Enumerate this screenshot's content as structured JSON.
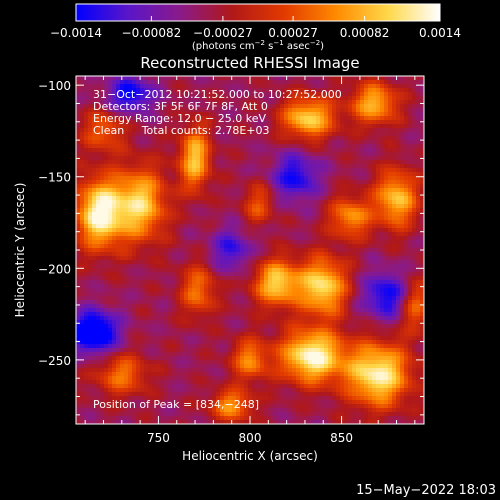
{
  "chart_data": {
    "type": "heatmap",
    "title": "Reconstructed RHESSI Image",
    "xlabel": "Heliocentric X (arcsec)",
    "ylabel": "Heliocentric Y (arcsec)",
    "xlim": [
      705,
      895
    ],
    "ylim": [
      -285,
      -95
    ],
    "x_ticks": [
      750,
      800,
      850
    ],
    "y_ticks": [
      -100,
      -150,
      -200,
      -250
    ],
    "x_tick_labels": [
      "750",
      "800",
      "850"
    ],
    "y_tick_labels": [
      "−100",
      "−150",
      "−200",
      "−250"
    ],
    "colorbar": {
      "range": [
        -0.0014,
        0.0014
      ],
      "ticks": [
        -0.0014,
        -0.00082,
        -0.00027,
        0.00027,
        0.00082,
        0.0014
      ],
      "tick_labels": [
        "−0.0014",
        "−0.00082",
        "−0.00027",
        "0.00027",
        "0.00082",
        "0.0014"
      ],
      "units_prefix": "(photons cm",
      "units_exp1": "−2",
      "units_mid1": " s",
      "units_exp2": "−1",
      "units_mid2": " asec",
      "units_exp3": "−2",
      "units_suffix": ")",
      "colormap": [
        "#0000ff",
        "#5a16c8",
        "#8a1a8a",
        "#b01818",
        "#e23a00",
        "#ff8a00",
        "#ffd84a",
        "#ffffff"
      ]
    },
    "annotations": {
      "line1": "31−Oct−2012 10:21:52.000 to 10:27:52.000",
      "line2": "Detectors: 3F 5F 6F 7F 8F, Att 0",
      "line3": "Energy Range: 12.0 − 25.0 keV",
      "line4": "Clean     Total counts: 2.78E+03",
      "peak": "Position of Peak = [834,−248]"
    },
    "peak": {
      "x": 834,
      "y": -248,
      "value": 0.0014
    },
    "bright_sources": [
      {
        "x": 718,
        "y": -170,
        "sx": 9,
        "sy": 13,
        "amp": 1.0
      },
      {
        "x": 740,
        "y": -165,
        "sx": 10,
        "sy": 14,
        "amp": 0.8
      },
      {
        "x": 770,
        "y": -140,
        "sx": 6,
        "sy": 12,
        "amp": 0.75
      },
      {
        "x": 772,
        "y": -212,
        "sx": 7,
        "sy": 10,
        "amp": 0.5
      },
      {
        "x": 815,
        "y": -208,
        "sx": 9,
        "sy": 9,
        "amp": 0.8
      },
      {
        "x": 832,
        "y": -118,
        "sx": 10,
        "sy": 8,
        "amp": 0.8
      },
      {
        "x": 868,
        "y": -110,
        "sx": 9,
        "sy": 8,
        "amp": 0.7
      },
      {
        "x": 880,
        "y": -162,
        "sx": 8,
        "sy": 11,
        "amp": 0.75
      },
      {
        "x": 855,
        "y": -172,
        "sx": 8,
        "sy": 8,
        "amp": 0.6
      },
      {
        "x": 840,
        "y": -210,
        "sx": 9,
        "sy": 11,
        "amp": 0.85
      },
      {
        "x": 834,
        "y": -248,
        "sx": 12,
        "sy": 10,
        "amp": 1.0
      },
      {
        "x": 870,
        "y": -258,
        "sx": 12,
        "sy": 12,
        "amp": 0.95
      },
      {
        "x": 800,
        "y": -250,
        "sx": 7,
        "sy": 8,
        "amp": 0.55
      },
      {
        "x": 790,
        "y": -275,
        "sx": 8,
        "sy": 6,
        "amp": 0.6
      },
      {
        "x": 730,
        "y": -258,
        "sx": 10,
        "sy": 8,
        "amp": 0.5
      },
      {
        "x": 720,
        "y": -125,
        "sx": 8,
        "sy": 8,
        "amp": 0.45
      },
      {
        "x": 805,
        "y": -165,
        "sx": 6,
        "sy": 8,
        "amp": 0.4
      },
      {
        "x": 890,
        "y": -220,
        "sx": 6,
        "sy": 10,
        "amp": 0.5
      }
    ],
    "negative_regions": [
      {
        "x": 715,
        "y": -235,
        "sx": 9,
        "sy": 8,
        "amp": -0.9
      },
      {
        "x": 735,
        "y": -105,
        "sx": 9,
        "sy": 7,
        "amp": -0.6
      },
      {
        "x": 825,
        "y": -150,
        "sx": 9,
        "sy": 9,
        "amp": -0.55
      },
      {
        "x": 875,
        "y": -215,
        "sx": 9,
        "sy": 9,
        "amp": -0.6
      },
      {
        "x": 790,
        "y": -190,
        "sx": 8,
        "sy": 8,
        "amp": -0.45
      }
    ]
  },
  "footer": {
    "date": "15−May−2022 18:03"
  }
}
